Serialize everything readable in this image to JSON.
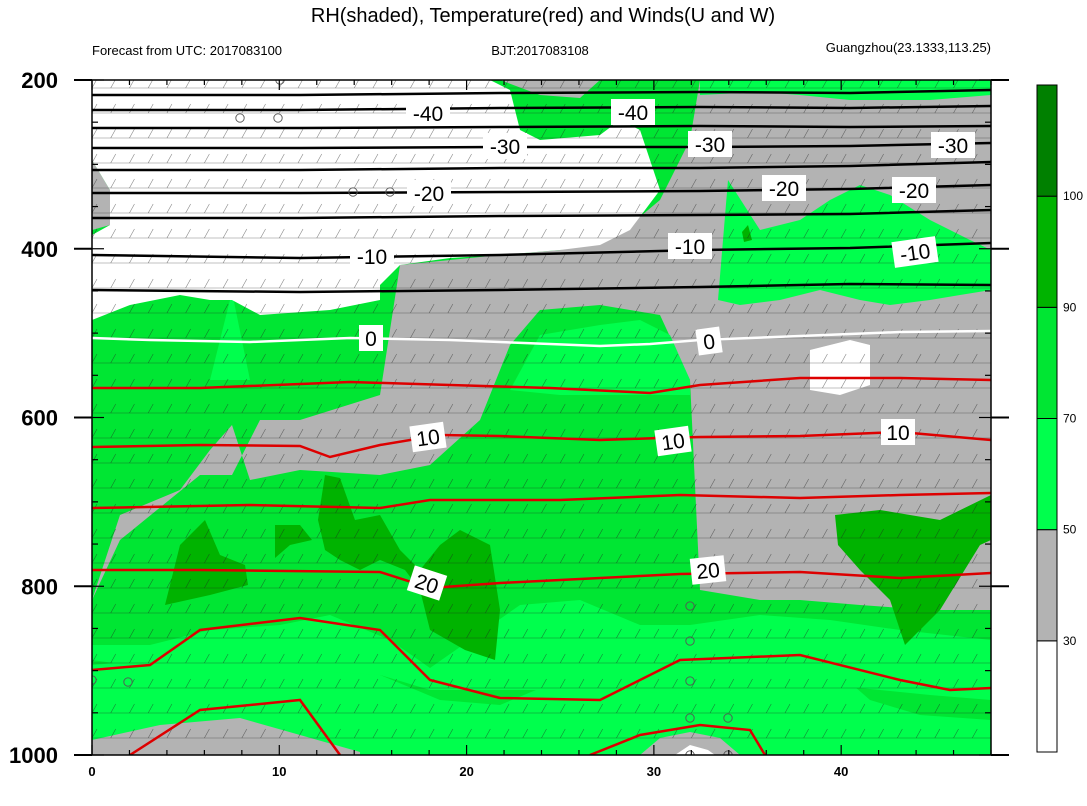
{
  "chart_data": {
    "type": "contour",
    "title": "RH(shaded), Temperature(red) and Winds(U and W)",
    "subtitle_left": "Forecast from UTC: 2017083100",
    "subtitle_center": "BJT:2017083108",
    "subtitle_right": "Guangzhou(23.1333,113.25)",
    "x_ticks": [
      0,
      10,
      20,
      30,
      40
    ],
    "y_ticks": [
      200,
      400,
      600,
      800,
      1000
    ],
    "xlim": [
      0,
      48
    ],
    "ylim": [
      1000,
      200
    ],
    "colorbar": {
      "levels": [
        30,
        50,
        70,
        90,
        100
      ],
      "labels": [
        "30",
        "50",
        "70",
        "90",
        "100"
      ],
      "colors": [
        "#ffffff",
        "#b3b3b3",
        "#00ff4d",
        "#00e633",
        "#00b300",
        "#008000"
      ]
    },
    "temperature_contours": {
      "negative_labels": [
        "-40",
        "-40",
        "-30",
        "-30",
        "-30",
        "-20",
        "-20",
        "-20",
        "-10",
        "-10",
        "-10"
      ],
      "zero_labels": [
        "0",
        "0"
      ],
      "positive_labels": [
        "10",
        "10",
        "10",
        "20",
        "20"
      ],
      "levels": [
        -45,
        -40,
        -35,
        -30,
        -25,
        -20,
        -15,
        -10,
        -5,
        0,
        5,
        10,
        15,
        20,
        25
      ],
      "negative_color": "#000000",
      "zero_color": "#ffffff",
      "positive_color": "#dd0000"
    }
  }
}
